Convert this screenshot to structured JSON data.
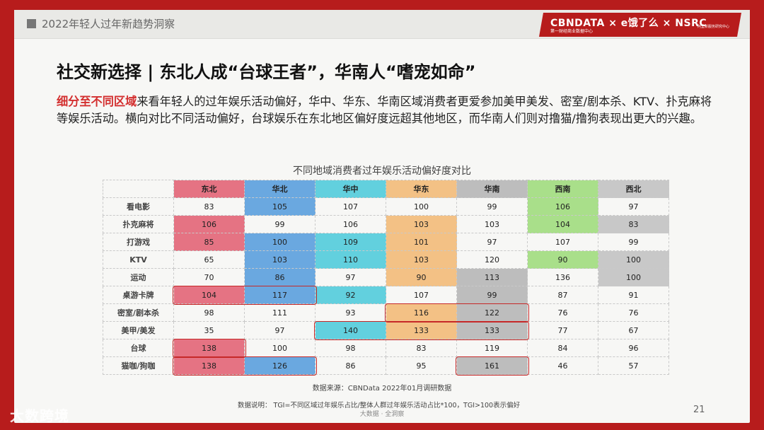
{
  "header": {
    "title": "2022年轻人过年新趋势洞察",
    "logo_text": "CBNDATA × e饿了么 × NSRC",
    "logo_sub": "第一财经商业数据中心",
    "logo_sub2": "阿里新服务研究中心"
  },
  "headline": "社交新选择 | 东北人成“台球王者”，华南人“嗜宠如命”",
  "paragraph": {
    "highlight": "细分至不同区域",
    "rest": "来看年轻人的过年娱乐活动偏好，华中、华东、华南区域消费者更爱参加美甲美发、密室/剧本杀、KTV、扑克麻将等娱乐活动。横向对比不同活动偏好，台球娱乐在东北地区偏好度远超其他地区，而华南人们则对撸猫/撸狗表现出更大的兴趣。"
  },
  "table": {
    "title": "不同地域消费者过年娱乐活动偏好度对比",
    "columns": [
      {
        "label": "东北",
        "color": "#e57383"
      },
      {
        "label": "华北",
        "color": "#6aa8e0"
      },
      {
        "label": "华中",
        "color": "#62d0de"
      },
      {
        "label": "华东",
        "color": "#f3c185"
      },
      {
        "label": "华南",
        "color": "#bdbdbd"
      },
      {
        "label": "西南",
        "color": "#a9df8a"
      },
      {
        "label": "西北",
        "color": "#c8c8c8"
      }
    ],
    "rows": [
      {
        "label": "看电影",
        "values": [
          83,
          105,
          107,
          100,
          99,
          106,
          97
        ]
      },
      {
        "label": "扑克麻将",
        "values": [
          106,
          99,
          106,
          103,
          103,
          104,
          83
        ]
      },
      {
        "label": "打游戏",
        "values": [
          85,
          100,
          109,
          101,
          97,
          107,
          99
        ]
      },
      {
        "label": "KTV",
        "values": [
          65,
          103,
          110,
          103,
          120,
          90,
          100
        ]
      },
      {
        "label": "运动",
        "values": [
          70,
          86,
          97,
          90,
          113,
          136,
          100
        ]
      },
      {
        "label": "桌游卡牌",
        "values": [
          104,
          117,
          92,
          107,
          99,
          87,
          91
        ]
      },
      {
        "label": "密室/剧本杀",
        "values": [
          98,
          111,
          93,
          116,
          122,
          76,
          76
        ]
      },
      {
        "label": "美甲/美发",
        "values": [
          35,
          97,
          140,
          133,
          133,
          77,
          67
        ]
      },
      {
        "label": "台球",
        "values": [
          138,
          100,
          98,
          83,
          119,
          84,
          96
        ]
      },
      {
        "label": "猫咖/狗咖",
        "values": [
          138,
          126,
          86,
          95,
          161,
          46,
          57
        ]
      }
    ],
    "shaded": [
      [
        1,
        0
      ],
      [
        5,
        0
      ],
      [
        8,
        0
      ],
      [
        9,
        0
      ],
      [
        0,
        1
      ],
      [
        3,
        1
      ],
      [
        5,
        1
      ],
      [
        6,
        1
      ],
      [
        9,
        1
      ],
      [
        0,
        2
      ],
      [
        1,
        2
      ],
      [
        2,
        2
      ],
      [
        3,
        2
      ],
      [
        7,
        2
      ],
      [
        1,
        3
      ],
      [
        2,
        3
      ],
      [
        3,
        3
      ],
      [
        5,
        3
      ],
      [
        6,
        3
      ],
      [
        7,
        3
      ],
      [
        1,
        4
      ],
      [
        3,
        4
      ],
      [
        4,
        4
      ],
      [
        6,
        4
      ],
      [
        7,
        4
      ],
      [
        8,
        4
      ],
      [
        9,
        4
      ],
      [
        0,
        5
      ],
      [
        1,
        5
      ],
      [
        2,
        5
      ],
      [
        4,
        5
      ]
    ],
    "highlight_boxes": [
      {
        "row": 5,
        "col_start": 0,
        "col_end": 1
      },
      {
        "row": 6,
        "col_start": 3,
        "col_end": 4
      },
      {
        "row": 7,
        "col_start": 2,
        "col_end": 4
      },
      {
        "row": 8,
        "col_start": 0,
        "col_end": 0
      },
      {
        "row": 9,
        "col_start": 0,
        "col_end": 1
      },
      {
        "row": 9,
        "col_start": 4,
        "col_end": 4
      }
    ],
    "highlight_color": "#c62828"
  },
  "source": "数据来源：CBNData 2022年01月调研数据",
  "note": "数据说明： TGI=不同区域过年娱乐占比/整体人群过年娱乐活动占比*100，TGI>100表示偏好",
  "footer_center": "大数据 · 全洞察",
  "page_number": "21",
  "watermark": "大数跨境"
}
